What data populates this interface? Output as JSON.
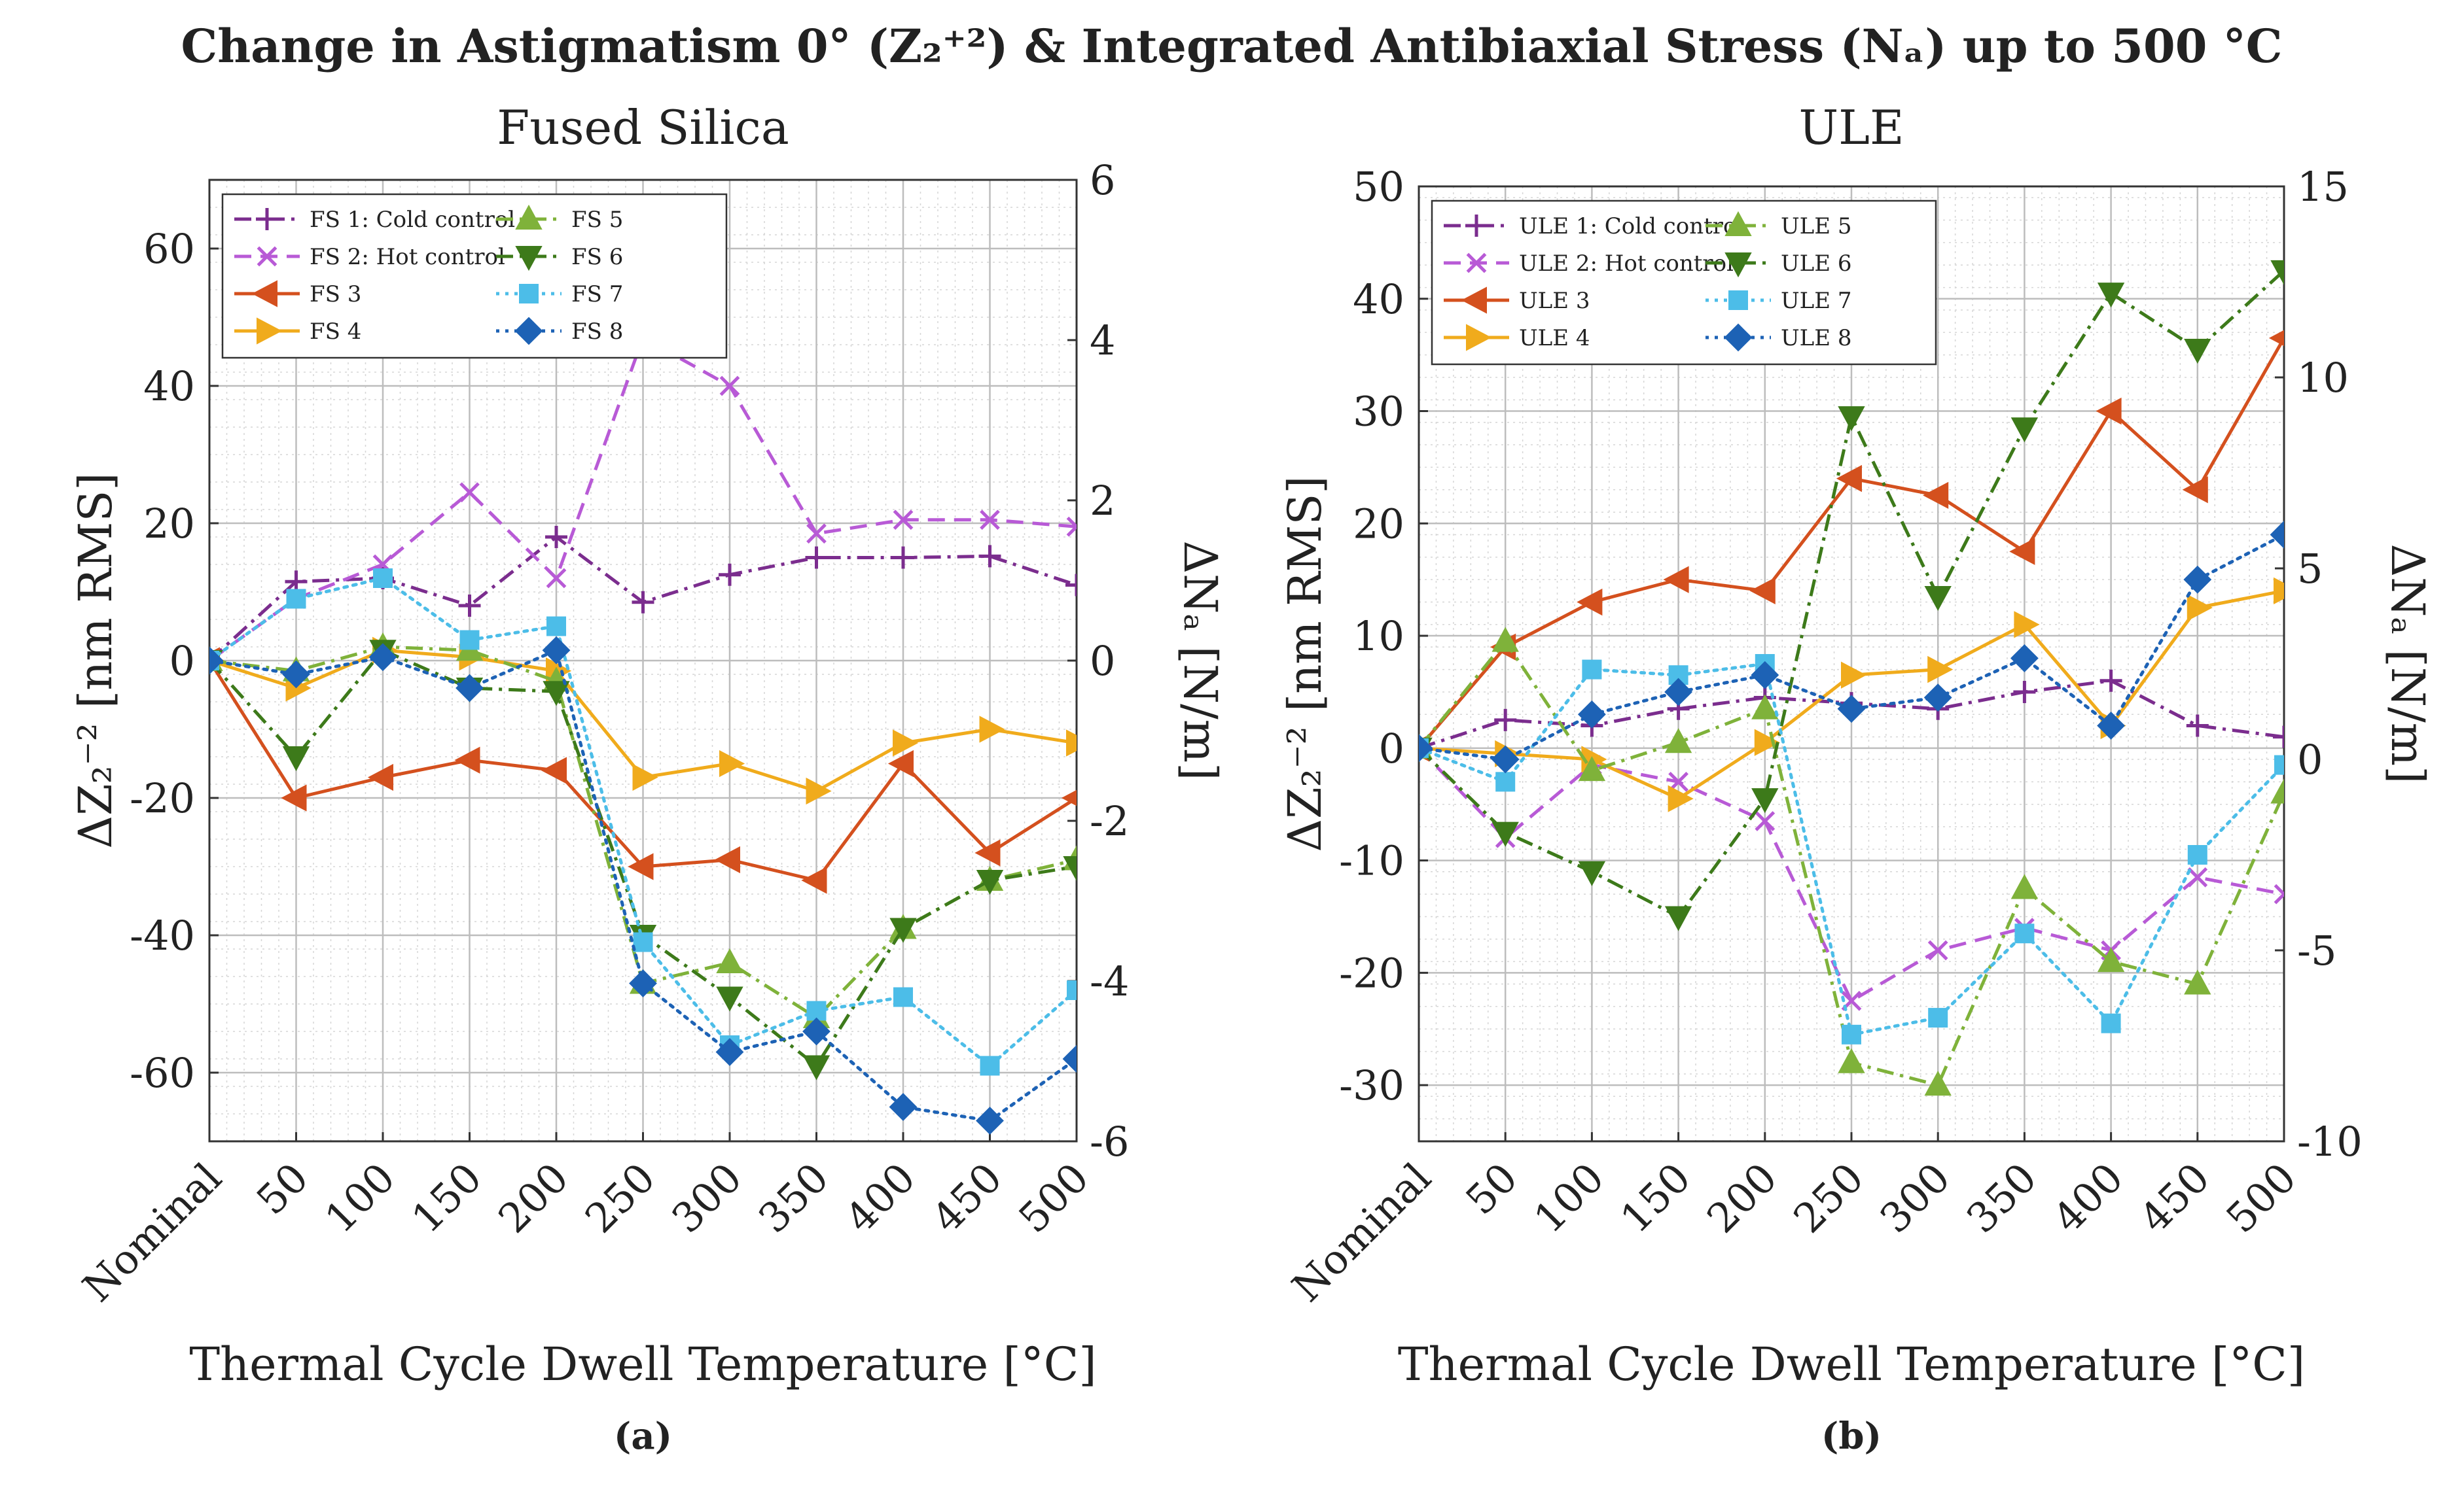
{
  "figure_title": "Change in Astigmatism 0° (Z₂⁺²) & Integrated Antibiaxial Stress (Nₐ) up to 500 °C",
  "chart_data": [
    {
      "type": "line",
      "panel_label": "(a)",
      "title": "Fused Silica",
      "xlabel": "Thermal Cycle Dwell Temperature [°C]",
      "ylabel": "ΔZ₂⁻² [nm RMS]",
      "y2label": "ΔNₐ [N/m]",
      "categories": [
        "Nominal",
        "50",
        "100",
        "150",
        "200",
        "250",
        "300",
        "350",
        "400",
        "450",
        "500"
      ],
      "ylim": [
        -70,
        70
      ],
      "yticks": [
        -60,
        -40,
        -20,
        0,
        20,
        40,
        60
      ],
      "y2lim": [
        -6,
        6
      ],
      "y2ticks": [
        -6,
        -4,
        -2,
        0,
        2,
        4,
        6
      ],
      "grid": true,
      "legend_position": "top-left",
      "series": [
        {
          "name": "FS 1: Cold control",
          "color": "#7b2d8e",
          "dash": "dashdot",
          "marker": "plus",
          "values": [
            0,
            11.5,
            12,
            8,
            18,
            8.5,
            12.5,
            15,
            15,
            15.2,
            11
          ]
        },
        {
          "name": "FS 2: Hot control",
          "color": "#b85ad6",
          "dash": "dashed",
          "marker": "x",
          "values": [
            0,
            9,
            14,
            24.5,
            12,
            47,
            40,
            18.5,
            20.5,
            20.5,
            19.5
          ]
        },
        {
          "name": "FS 3",
          "color": "#d4501e",
          "dash": "solid",
          "marker": "triangle-left",
          "values": [
            0,
            -20,
            -17,
            -14.5,
            -16,
            -30,
            -29,
            -32,
            -15,
            -28,
            -20
          ]
        },
        {
          "name": "FS 4",
          "color": "#f0ab1c",
          "dash": "solid",
          "marker": "triangle-right",
          "values": [
            0,
            -4,
            1.5,
            0.5,
            -1.5,
            -17,
            -15,
            -19,
            -12,
            -10,
            -12
          ]
        },
        {
          "name": "FS 5",
          "color": "#7fb23a",
          "dash": "dashdot",
          "marker": "triangle-up",
          "values": [
            0,
            -1.5,
            2,
            1.5,
            -3,
            -47,
            -44,
            -52,
            -39,
            -32,
            -29
          ]
        },
        {
          "name": "FS 6",
          "color": "#3d7a1a",
          "dash": "dashdot",
          "marker": "triangle-down",
          "values": [
            0,
            -14,
            1.5,
            -4,
            -4.5,
            -40,
            -49,
            -59,
            -39,
            -32,
            -30
          ]
        },
        {
          "name": "FS 7",
          "color": "#4cbde8",
          "dash": "dotted",
          "marker": "square",
          "values": [
            0,
            9,
            12,
            3,
            5,
            -41,
            -56,
            -51,
            -49,
            -59,
            -48
          ]
        },
        {
          "name": "FS 8",
          "color": "#1d62b5",
          "dash": "dotted",
          "marker": "diamond",
          "values": [
            0,
            -2,
            0.5,
            -4,
            1.5,
            -47,
            -57,
            -54,
            -65,
            -67,
            -58
          ]
        }
      ]
    },
    {
      "type": "line",
      "panel_label": "(b)",
      "title": "ULE",
      "xlabel": "Thermal Cycle Dwell Temperature [°C]",
      "ylabel": "ΔZ₂⁻² [nm RMS]",
      "y2label": "ΔNₐ [N/m]",
      "categories": [
        "Nominal",
        "50",
        "100",
        "150",
        "200",
        "250",
        "300",
        "350",
        "400",
        "450",
        "500"
      ],
      "ylim": [
        -35,
        50
      ],
      "yticks": [
        -30,
        -20,
        -10,
        0,
        10,
        20,
        30,
        40,
        50
      ],
      "y2lim": [
        -10,
        15
      ],
      "y2ticks": [
        -10,
        -5,
        0,
        5,
        10,
        15
      ],
      "grid": true,
      "legend_position": "top-left",
      "series": [
        {
          "name": "ULE 1: Cold control",
          "color": "#7b2d8e",
          "dash": "dashdot",
          "marker": "plus",
          "values": [
            0,
            2.5,
            2,
            3.5,
            4.5,
            4,
            3.5,
            5,
            6,
            2,
            1
          ]
        },
        {
          "name": "ULE 2: Hot control",
          "color": "#b85ad6",
          "dash": "dashed",
          "marker": "x",
          "values": [
            0,
            -8,
            -1.5,
            -3,
            -6.5,
            -22.5,
            -18,
            -16,
            -18,
            -11.5,
            -13
          ]
        },
        {
          "name": "ULE 3",
          "color": "#d4501e",
          "dash": "solid",
          "marker": "triangle-left",
          "values": [
            0,
            9,
            13,
            15,
            14,
            24,
            22.5,
            17.5,
            30,
            23,
            36.5
          ]
        },
        {
          "name": "ULE 4",
          "color": "#f0ab1c",
          "dash": "solid",
          "marker": "triangle-right",
          "values": [
            0,
            -0.5,
            -1,
            -4.5,
            0.5,
            6.5,
            7,
            11,
            2,
            12.5,
            14
          ]
        },
        {
          "name": "ULE 5",
          "color": "#7fb23a",
          "dash": "dashdot",
          "marker": "triangle-up",
          "values": [
            0,
            9.5,
            -2,
            0.5,
            3.5,
            -28,
            -30,
            -12.5,
            -19,
            -21,
            -4
          ]
        },
        {
          "name": "ULE 6",
          "color": "#3d7a1a",
          "dash": "dashdot",
          "marker": "triangle-down",
          "values": [
            0,
            -7.5,
            -11,
            -15,
            -4.5,
            29.5,
            13.5,
            28.5,
            40.5,
            35.5,
            42.5
          ]
        },
        {
          "name": "ULE 7",
          "color": "#4cbde8",
          "dash": "dotted",
          "marker": "square",
          "values": [
            0,
            -3,
            7,
            6.5,
            7.5,
            -25.5,
            -24,
            -16.5,
            -24.5,
            -9.5,
            -1.5
          ]
        },
        {
          "name": "ULE 8",
          "color": "#1d62b5",
          "dash": "dotted",
          "marker": "diamond",
          "values": [
            0,
            -1,
            3,
            5,
            6.5,
            3.5,
            4.5,
            8,
            2,
            15,
            19
          ]
        }
      ]
    }
  ]
}
